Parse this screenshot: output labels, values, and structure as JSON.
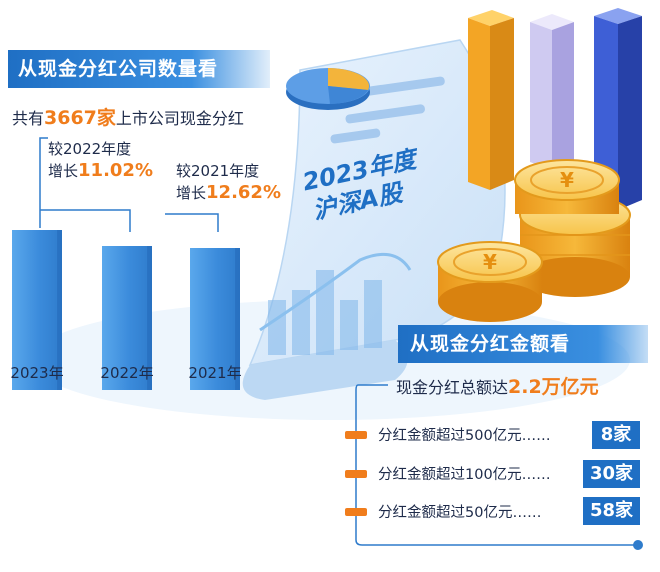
{
  "section1": {
    "title": "从现金分红公司数量看",
    "total_prefix": "共有",
    "total_value": "3667家",
    "total_suffix": "上市公司现金分红",
    "cmp2022_line1": "较2022年度",
    "cmp2022_prefix": "增长",
    "cmp2022_pct": "11.02%",
    "cmp2021_line1": "较2021年度",
    "cmp2021_prefix": "增长",
    "cmp2021_pct": "12.62%"
  },
  "center_label": {
    "line1": "2023年度",
    "line2": "沪深A股"
  },
  "chart_data": {
    "type": "bar",
    "categories": [
      "2023年",
      "2022年",
      "2021年"
    ],
    "values": [
      3667,
      3303,
      3256
    ],
    "value_note": "",
    "title": "",
    "xlabel": "",
    "ylabel": ""
  },
  "section2": {
    "title": "从现金分红金额看",
    "total_prefix": "现金分红总额达",
    "total_value": "2.2万亿元",
    "rows": [
      {
        "label": "分红金额超过500亿元……",
        "value": "8家"
      },
      {
        "label": "分红金额超过100亿元……",
        "value": "30家"
      },
      {
        "label": "分红金额超过50亿元……",
        "value": "58家"
      }
    ]
  },
  "colors": {
    "accent_blue": "#1f6fc4",
    "accent_orange": "#f07d1c",
    "coin_gold": "#f5b324"
  }
}
